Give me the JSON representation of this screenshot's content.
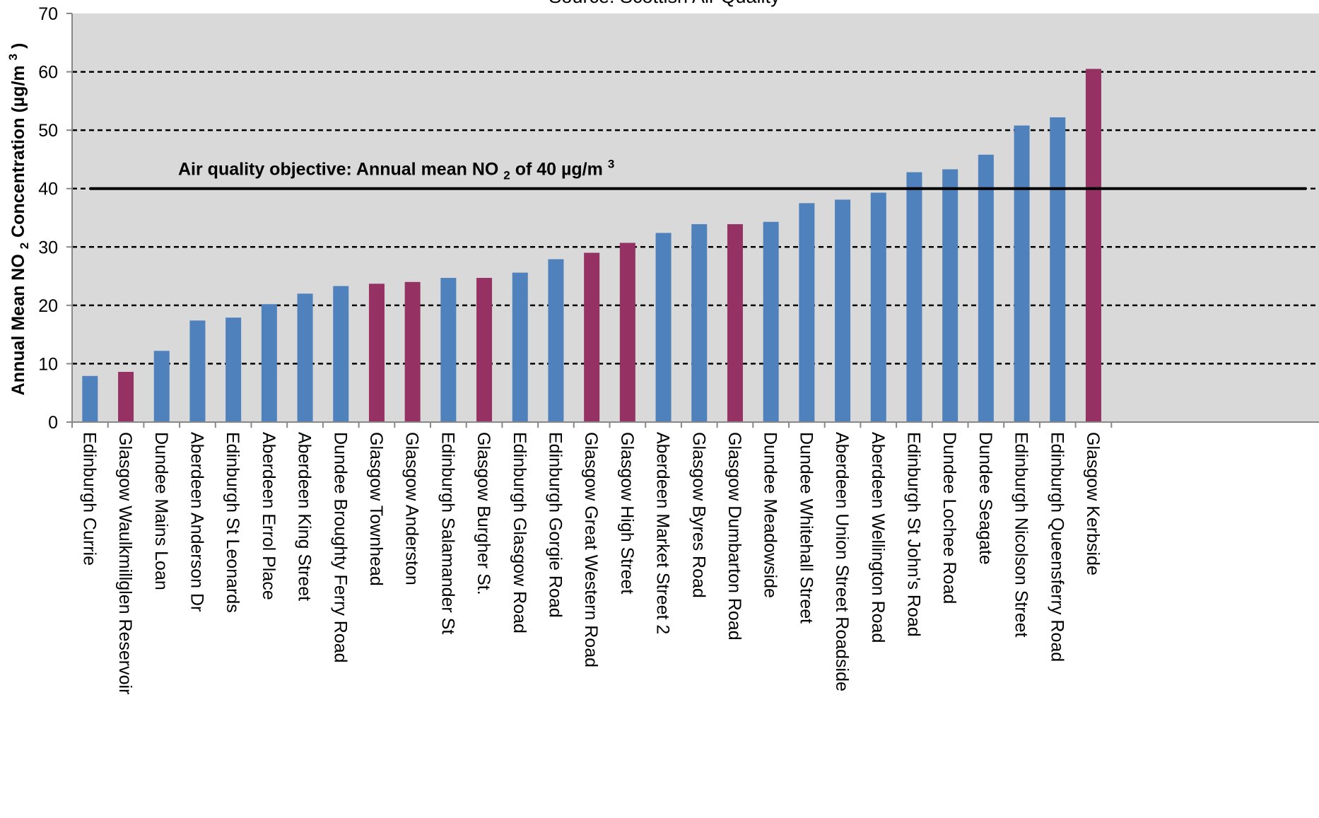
{
  "chart_data": {
    "type": "bar",
    "source": "Source: Scottish Air Quality",
    "ylabel": {
      "main": "Annual Mean NO",
      "sub": "2",
      "rest": " Concentration (µg/m",
      "sup": "3",
      "end": ")"
    },
    "ylim": [
      0,
      70
    ],
    "yticks": [
      0,
      10,
      20,
      30,
      40,
      50,
      60,
      70
    ],
    "grid": true,
    "objective": {
      "value": 40,
      "label_main": "Air quality objective: Annual mean NO",
      "label_sub": "2",
      "label_rest": " of 40 µg/m",
      "label_sup": "3"
    },
    "colors": {
      "plot_background": "#d9d9d9",
      "bar_blue": "#4f81bd",
      "bar_magenta": "#953163",
      "gridline": "#000000",
      "objective_line": "#000000"
    },
    "bars": [
      {
        "category": "Edinburgh Currie",
        "value": 7.9,
        "color": "blue"
      },
      {
        "category": "Glasgow Waulkmillglen Reservoir",
        "value": 8.6,
        "color": "magenta"
      },
      {
        "category": "Dundee Mains Loan",
        "value": 12.2,
        "color": "blue"
      },
      {
        "category": "Aberdeen Anderson Dr",
        "value": 17.4,
        "color": "blue"
      },
      {
        "category": "Edinburgh St Leonards",
        "value": 17.9,
        "color": "blue"
      },
      {
        "category": "Aberdeen Errol Place",
        "value": 20.2,
        "color": "blue"
      },
      {
        "category": "Aberdeen King Street",
        "value": 22.0,
        "color": "blue"
      },
      {
        "category": "Dundee Broughty Ferry Road",
        "value": 23.3,
        "color": "blue"
      },
      {
        "category": "Glasgow Townhead",
        "value": 23.7,
        "color": "magenta"
      },
      {
        "category": "Glasgow Anderston",
        "value": 24.0,
        "color": "magenta"
      },
      {
        "category": "Edinburgh Salamander St",
        "value": 24.7,
        "color": "blue"
      },
      {
        "category": "Glasgow Burgher St.",
        "value": 24.7,
        "color": "magenta"
      },
      {
        "category": "Edinburgh Glasgow Road",
        "value": 25.6,
        "color": "blue"
      },
      {
        "category": "Edinburgh Gorgie Road",
        "value": 27.9,
        "color": "blue"
      },
      {
        "category": "Glasgow Great Western Road",
        "value": 29.0,
        "color": "magenta"
      },
      {
        "category": "Glasgow High Street",
        "value": 30.7,
        "color": "magenta"
      },
      {
        "category": "Aberdeen Market Street 2",
        "value": 32.4,
        "color": "blue"
      },
      {
        "category": "Glasgow Byres Road",
        "value": 33.9,
        "color": "blue"
      },
      {
        "category": "Glasgow Dumbarton Road",
        "value": 33.9,
        "color": "magenta"
      },
      {
        "category": "Dundee Meadowside",
        "value": 34.3,
        "color": "blue"
      },
      {
        "category": "Dundee Whitehall Street",
        "value": 37.5,
        "color": "blue"
      },
      {
        "category": "Aberdeen Union Street Roadside",
        "value": 38.1,
        "color": "blue"
      },
      {
        "category": "Aberdeen Wellington Road",
        "value": 39.3,
        "color": "blue"
      },
      {
        "category": "Edinburgh St John's Road",
        "value": 42.8,
        "color": "blue"
      },
      {
        "category": "Dundee Lochee Road",
        "value": 43.3,
        "color": "blue"
      },
      {
        "category": "Dundee Seagate",
        "value": 45.8,
        "color": "blue"
      },
      {
        "category": "Edinburgh Nicolson Street",
        "value": 50.8,
        "color": "blue"
      },
      {
        "category": "Edinburgh Queensferry Road",
        "value": 52.2,
        "color": "blue"
      },
      {
        "category": "Glasgow Kerbside",
        "value": 60.5,
        "color": "magenta"
      }
    ]
  }
}
